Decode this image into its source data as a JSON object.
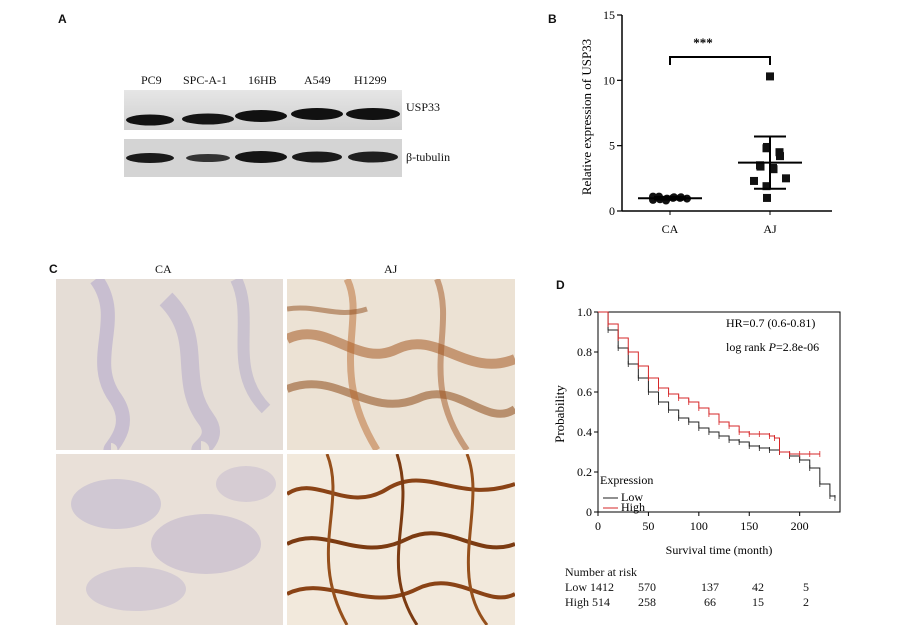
{
  "panels": {
    "a": {
      "letter": "A",
      "lanes": [
        "PC9",
        "SPC-A-1",
        "16HB",
        "A549",
        "H1299"
      ],
      "blots": [
        "USP33",
        "β-tubulin"
      ]
    },
    "b": {
      "letter": "B",
      "significance": "***",
      "chart_data": {
        "type": "scatter",
        "title": "",
        "ylabel": "Relative expression of USP33",
        "xlabel": "",
        "ylim": [
          0,
          15
        ],
        "yticks": [
          0,
          5,
          10,
          15
        ],
        "categories": [
          "CA",
          "AJ"
        ],
        "series": [
          {
            "category": "CA",
            "values": [
              0.85,
              0.9,
              0.95,
              1.0,
              1.05,
              1.1,
              0.9,
              1.0,
              1.05,
              0.95,
              1.1,
              0.8
            ],
            "mean": 0.98,
            "sd": 0.1
          },
          {
            "category": "AJ",
            "values": [
              10.3,
              4.8,
              4.9,
              4.5,
              4.2,
              3.5,
              3.4,
              3.3,
              3.2,
              2.5,
              2.3,
              1.9,
              1.0
            ],
            "mean": 3.7,
            "sd": 2.0
          }
        ],
        "colors": {
          "points": "#111111"
        }
      }
    },
    "c": {
      "letter": "C",
      "columns": [
        "CA",
        "AJ"
      ]
    },
    "d": {
      "letter": "D",
      "hr_text": "HR=0.7 (0.6-0.81)",
      "logrank_prefix": "log rank ",
      "logrank_p": "P",
      "logrank_value": "=2.8e-06",
      "legend_title": "Expression",
      "risk_header": "Number at risk",
      "risk_rows": [
        {
          "label": "Low 1412",
          "values": [
            "570",
            "137",
            "42",
            "5"
          ]
        },
        {
          "label": "High 514",
          "values": [
            "258",
            "66",
            "15",
            "2"
          ]
        }
      ],
      "chart_data": {
        "type": "line",
        "title": "",
        "xlabel": "Survival time (month)",
        "ylabel": "Probability",
        "xlim": [
          0,
          240
        ],
        "ylim": [
          0,
          1
        ],
        "xticks": [
          0,
          50,
          100,
          150,
          200
        ],
        "yticks": [
          0,
          0.2,
          0.4,
          0.6,
          0.8,
          1.0
        ],
        "series": [
          {
            "name": "Low",
            "color": "#222222",
            "x": [
              0,
              10,
              20,
              30,
              40,
              50,
              60,
              70,
              80,
              90,
              100,
              110,
              120,
              130,
              140,
              150,
              160,
              170,
              180,
              190,
              200,
              210,
              220,
              230,
              235
            ],
            "y": [
              1.0,
              0.91,
              0.82,
              0.74,
              0.67,
              0.6,
              0.55,
              0.51,
              0.47,
              0.45,
              0.42,
              0.4,
              0.38,
              0.36,
              0.35,
              0.33,
              0.32,
              0.31,
              0.3,
              0.28,
              0.26,
              0.22,
              0.14,
              0.08,
              0.07
            ]
          },
          {
            "name": "High",
            "color": "#d62728",
            "x": [
              0,
              10,
              20,
              30,
              40,
              50,
              60,
              70,
              80,
              90,
              100,
              110,
              120,
              130,
              140,
              150,
              160,
              170,
              175,
              180,
              190,
              200,
              210,
              220
            ],
            "y": [
              1.0,
              0.94,
              0.87,
              0.8,
              0.73,
              0.67,
              0.62,
              0.59,
              0.57,
              0.55,
              0.52,
              0.49,
              0.45,
              0.43,
              0.4,
              0.39,
              0.39,
              0.38,
              0.37,
              0.3,
              0.29,
              0.29,
              0.29,
              0.29
            ]
          }
        ]
      }
    }
  }
}
